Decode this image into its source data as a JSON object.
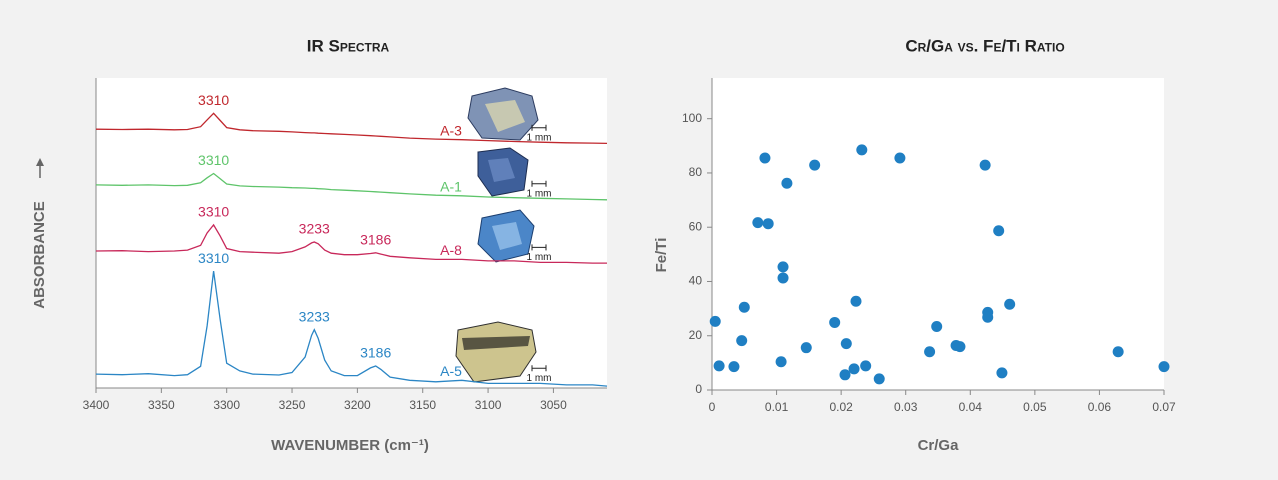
{
  "chart_data": [
    {
      "type": "line",
      "title": "IR Spectra",
      "xlabel": "WAVENUMBER (cm⁻¹)",
      "ylabel": "ABSORBANCE",
      "scale_label": "1 mm",
      "xlim": [
        3400,
        3009
      ],
      "xticks": [
        3400,
        3350,
        3300,
        3250,
        3200,
        3150,
        3100,
        3050
      ],
      "ylim": [
        0,
        100
      ],
      "x": [
        3400,
        3380,
        3360,
        3340,
        3330,
        3320,
        3315,
        3310,
        3305,
        3300,
        3290,
        3280,
        3260,
        3250,
        3240,
        3235,
        3233,
        3230,
        3225,
        3220,
        3210,
        3200,
        3190,
        3186,
        3182,
        3175,
        3160,
        3140,
        3120,
        3100,
        3080,
        3060,
        3040,
        3020,
        3009
      ],
      "series": [
        {
          "name": "A-3",
          "color": "#c0272d",
          "peak_labels": [
            {
              "text": "3310",
              "x": 3310
            }
          ],
          "values": [
            83.5,
            83.4,
            83.5,
            83.3,
            83.4,
            84.3,
            86.5,
            88.6,
            86.3,
            84,
            83.3,
            83,
            82.8,
            82.6,
            82.4,
            82.3,
            82.3,
            82.2,
            82.1,
            82,
            81.8,
            81.6,
            81.4,
            81.3,
            81.2,
            81,
            80.6,
            80.3,
            80.1,
            79.8,
            79.5,
            79.3,
            79.1,
            79,
            78.9
          ]
        },
        {
          "name": "A-1",
          "color": "#5ec46a",
          "peak_labels": [
            {
              "text": "3310",
              "x": 3310
            }
          ],
          "values": [
            65.5,
            65.4,
            65.5,
            65.3,
            65.4,
            66.2,
            67.8,
            69.2,
            67.5,
            65.8,
            65.2,
            65,
            64.8,
            64.6,
            64.5,
            64.4,
            64.4,
            64.3,
            64.2,
            64,
            63.8,
            63.6,
            63.4,
            63.3,
            63.2,
            63,
            62.6,
            62.2,
            62,
            61.6,
            61.4,
            61.2,
            61,
            60.8,
            60.7
          ]
        },
        {
          "name": "A-8",
          "color": "#c8285a",
          "peak_labels": [
            {
              "text": "3310",
              "x": 3310
            },
            {
              "text": "3233",
              "x": 3233
            },
            {
              "text": "3186",
              "x": 3186
            }
          ],
          "values": [
            44.2,
            44.3,
            44.0,
            44.2,
            44.5,
            46,
            50,
            52.6,
            49,
            45,
            44,
            43.8,
            43.5,
            44,
            45.5,
            46.8,
            47.1,
            46.5,
            44.5,
            43.5,
            43.0,
            43,
            43.4,
            43.6,
            43.2,
            42.5,
            42,
            41.5,
            41.5,
            41,
            41,
            40.5,
            40.5,
            40.3,
            40.3
          ]
        },
        {
          "name": "A-5",
          "color": "#2b86c5",
          "peak_labels": [
            {
              "text": "3310",
              "x": 3310
            },
            {
              "text": "3233",
              "x": 3233
            },
            {
              "text": "3186",
              "x": 3186
            }
          ],
          "values": [
            4.5,
            4.3,
            4.6,
            4.0,
            4.3,
            7.0,
            20,
            37.7,
            22,
            8,
            5.5,
            4.5,
            4.2,
            5.0,
            10,
            17,
            18.8,
            16,
            9,
            5.5,
            4,
            4,
            6.5,
            7.1,
            6,
            3.5,
            2.5,
            2,
            2.5,
            1.5,
            1.5,
            1.5,
            1,
            1,
            0.6
          ]
        }
      ]
    },
    {
      "type": "scatter",
      "title": "Cr/Ga vs. Fe/Ti Ratio",
      "xlabel": "Cr/Ga",
      "ylabel": "Fe/Ti",
      "color": "#1f7fc3",
      "xlim": [
        0,
        0.07
      ],
      "xticks": [
        0,
        0.01,
        0.02,
        0.03,
        0.04,
        0.05,
        0.06,
        0.07
      ],
      "ylim": [
        0,
        115
      ],
      "yticks": [
        0,
        20,
        40,
        60,
        80,
        100
      ],
      "x": [
        0.0005,
        0.0011,
        0.0034,
        0.0046,
        0.005,
        0.0071,
        0.0082,
        0.0087,
        0.0107,
        0.011,
        0.011,
        0.0116,
        0.0146,
        0.0159,
        0.019,
        0.0208,
        0.0206,
        0.022,
        0.0223,
        0.0232,
        0.0238,
        0.0259,
        0.0291,
        0.0337,
        0.0348,
        0.0378,
        0.0384,
        0.0423,
        0.0427,
        0.0427,
        0.0444,
        0.0449,
        0.0461,
        0.0629,
        0.07
      ],
      "values": [
        25.3,
        8.9,
        8.6,
        18.2,
        30.5,
        61.7,
        85.5,
        61.3,
        10.4,
        45.4,
        41.3,
        76.2,
        15.6,
        82.9,
        24.9,
        17.1,
        5.6,
        7.8,
        32.7,
        88.5,
        8.9,
        4.1,
        85.5,
        14.1,
        23.4,
        16.4,
        16.0,
        82.9,
        28.6,
        26.8,
        58.7,
        6.3,
        31.6,
        14.1,
        8.6
      ]
    }
  ]
}
